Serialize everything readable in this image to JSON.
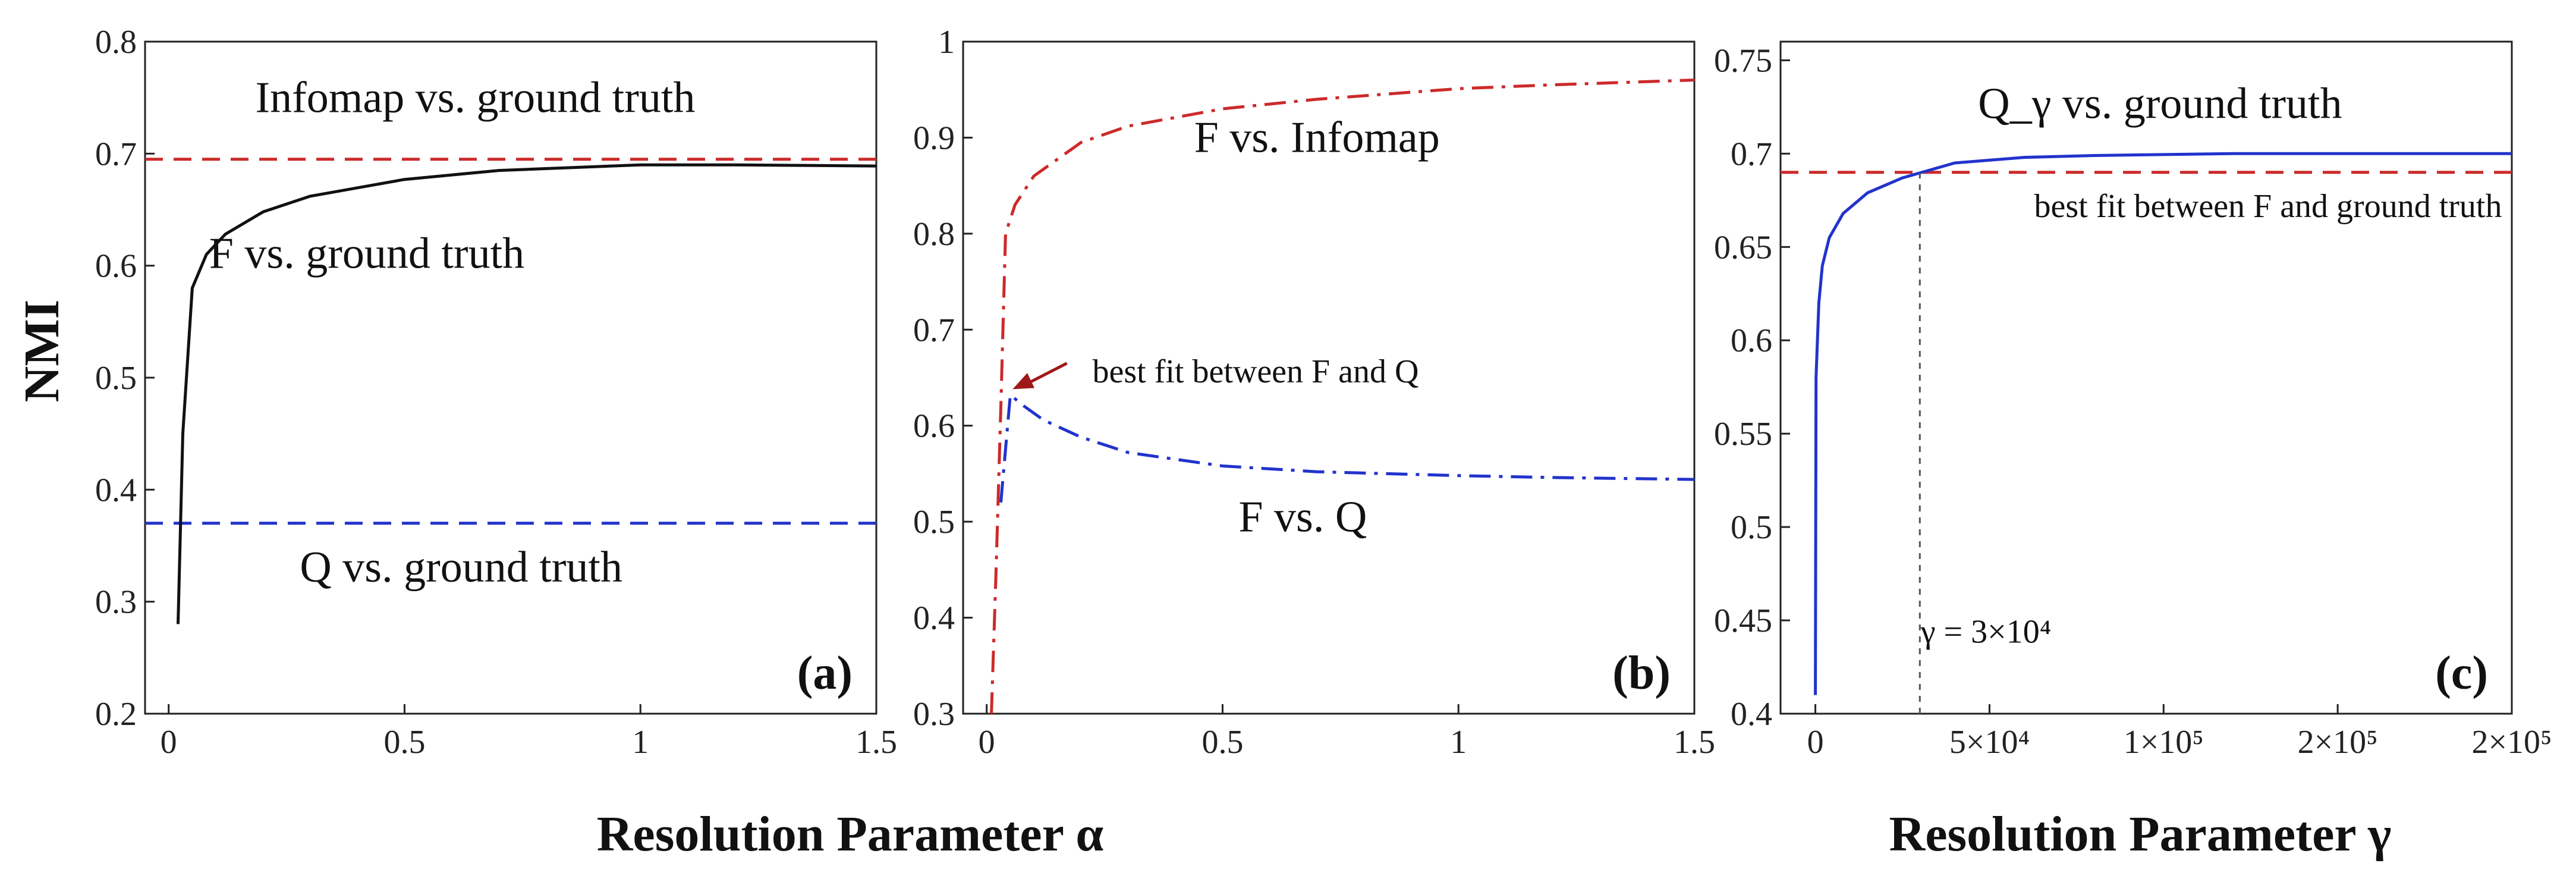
{
  "figure": {
    "ylabel": "NMI",
    "xlabel_ab": "Resolution Parameter α",
    "xlabel_c": "Resolution Parameter γ"
  },
  "colors": {
    "red": "#cc2a2a",
    "blue": "#2233cc",
    "black": "#111111",
    "gray": "#555555"
  },
  "chart_data": [
    {
      "type": "line",
      "panel": "(a)",
      "xlim": [
        -0.05,
        1.5
      ],
      "ylim": [
        0.2,
        0.8
      ],
      "xticks": [
        0,
        0.5,
        1,
        1.5
      ],
      "xtick_labels": [
        "0",
        "0.5",
        "1",
        "1.5"
      ],
      "yticks": [
        0.2,
        0.3,
        0.4,
        0.5,
        0.6,
        0.7,
        0.8
      ],
      "ytick_labels": [
        "0.2",
        "0.3",
        "0.4",
        "0.5",
        "0.6",
        "0.7",
        "0.8"
      ],
      "series": [
        {
          "name": "Infomap vs. ground truth",
          "style": "dashed",
          "color": "red",
          "x": [
            -0.05,
            1.5
          ],
          "y": [
            0.695,
            0.695
          ]
        },
        {
          "name": "Q vs. ground truth",
          "style": "dashed",
          "color": "blue",
          "x": [
            -0.05,
            1.5
          ],
          "y": [
            0.37,
            0.37
          ]
        },
        {
          "name": "F vs. ground truth",
          "style": "solid",
          "color": "black",
          "x": [
            0.02,
            0.03,
            0.05,
            0.08,
            0.12,
            0.2,
            0.3,
            0.5,
            0.7,
            1.0,
            1.2,
            1.5
          ],
          "y": [
            0.28,
            0.45,
            0.58,
            0.61,
            0.628,
            0.648,
            0.662,
            0.677,
            0.685,
            0.69,
            0.69,
            0.689
          ]
        }
      ],
      "annotations": [
        {
          "text": "Infomap vs. ground truth",
          "x": 0.65,
          "y": 0.737
        },
        {
          "text": "F vs. ground truth",
          "x": 0.42,
          "y": 0.598
        },
        {
          "text": "Q vs. ground truth",
          "x": 0.62,
          "y": 0.318
        }
      ]
    },
    {
      "type": "line",
      "panel": "(b)",
      "xlim": [
        -0.05,
        1.5
      ],
      "ylim": [
        0.3,
        1.0
      ],
      "xticks": [
        0,
        0.5,
        1,
        1.5
      ],
      "xtick_labels": [
        "0",
        "0.5",
        "1",
        "1.5"
      ],
      "yticks": [
        0.3,
        0.4,
        0.5,
        0.6,
        0.7,
        0.8,
        0.9,
        1.0
      ],
      "ytick_labels": [
        "0.3",
        "0.4",
        "0.5",
        "0.6",
        "0.7",
        "0.8",
        "0.9",
        "1"
      ],
      "series": [
        {
          "name": "F vs. Infomap",
          "style": "dashdot",
          "color": "red",
          "x": [
            0.01,
            0.02,
            0.03,
            0.04,
            0.06,
            0.1,
            0.2,
            0.3,
            0.5,
            0.7,
            1.0,
            1.2,
            1.5
          ],
          "y": [
            0.3,
            0.45,
            0.62,
            0.8,
            0.83,
            0.86,
            0.895,
            0.912,
            0.93,
            0.94,
            0.951,
            0.955,
            0.96
          ]
        },
        {
          "name": "F vs. Q",
          "style": "dashdot",
          "color": "blue",
          "x": [
            0.03,
            0.05,
            0.08,
            0.12,
            0.2,
            0.3,
            0.5,
            0.7,
            1.0,
            1.2,
            1.5
          ],
          "y": [
            0.52,
            0.632,
            0.62,
            0.606,
            0.588,
            0.572,
            0.558,
            0.552,
            0.548,
            0.546,
            0.544
          ]
        }
      ],
      "annotations": [
        {
          "text": "F vs. Infomap",
          "x": 0.7,
          "y": 0.885
        },
        {
          "text": "best fit between F and Q",
          "x": 0.57,
          "y": 0.645
        },
        {
          "text": "F vs. Q",
          "x": 0.67,
          "y": 0.49
        }
      ]
    },
    {
      "type": "line",
      "panel": "(c)",
      "xlim": [
        -10000,
        200000
      ],
      "ylim": [
        0.4,
        0.76
      ],
      "xticks": [
        0,
        50000,
        100000,
        150000,
        200000
      ],
      "xtick_labels": [
        "0",
        "5×10⁴",
        "1×10⁵",
        "2×10⁵",
        "2×10⁵"
      ],
      "yticks": [
        0.4,
        0.45,
        0.5,
        0.55,
        0.6,
        0.65,
        0.7,
        0.75
      ],
      "ytick_labels": [
        "0.4",
        "0.45",
        "0.5",
        "0.55",
        "0.6",
        "0.65",
        "0.7",
        "0.75"
      ],
      "series": [
        {
          "name": "best fit between F and ground truth",
          "style": "dashed",
          "color": "red",
          "x": [
            -10000,
            200000
          ],
          "y": [
            0.69,
            0.69
          ]
        },
        {
          "name": "Q_γ vs. ground truth",
          "style": "solid",
          "color": "blue",
          "x": [
            0,
            200,
            1000,
            2000,
            4000,
            8000,
            15000,
            25000,
            40000,
            60000,
            80000,
            120000,
            160000,
            200000
          ],
          "y": [
            0.41,
            0.58,
            0.62,
            0.64,
            0.655,
            0.668,
            0.679,
            0.687,
            0.695,
            0.698,
            0.699,
            0.7,
            0.7,
            0.7
          ]
        },
        {
          "name": "γ = 3×10⁴",
          "style": "dashed",
          "color": "gray",
          "x": [
            30000,
            30000
          ],
          "y": [
            0.4,
            0.69
          ]
        }
      ],
      "annotations": [
        {
          "text": "Q_γ vs. ground truth",
          "x": 99000,
          "y": 0.719
        },
        {
          "text": "best fit between F and ground truth",
          "x": 130000,
          "y": 0.666
        },
        {
          "text": "γ = 3×10⁴",
          "x": 49000,
          "y": 0.438
        }
      ]
    }
  ]
}
